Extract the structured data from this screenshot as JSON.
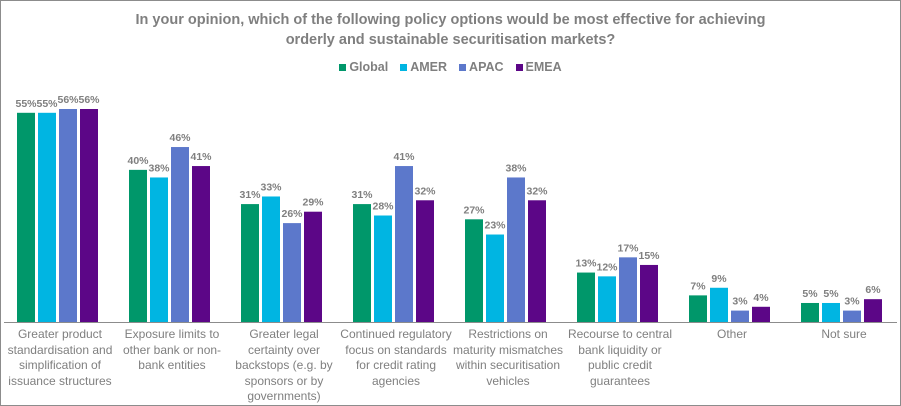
{
  "chart_data": {
    "type": "bar",
    "title": "In your opinion, which of the following policy options would be most effective for achieving orderly and sustainable securitisation markets?",
    "title_lines": [
      "In your opinion, which of the following policy options would be most effective for achieving",
      "orderly and sustainable securitisation markets?"
    ],
    "xlabel": "",
    "ylabel": "",
    "ylim": [
      0,
      60
    ],
    "grid": false,
    "legend_position": "top-center",
    "categories": [
      "Greater product standardisation and simplification of issuance structures",
      "Exposure limits to other bank or non-bank entities",
      "Greater legal certainty over backstops (e.g. by sponsors or by governments)",
      "Continued regulatory focus on standards for credit rating agencies",
      "Restrictions on maturity mismatches within securitisation vehicles",
      "Recourse to central bank liquidity or public credit guarantees",
      "Other",
      "Not sure"
    ],
    "series": [
      {
        "name": "Global",
        "color": "#00976a",
        "values": [
          55,
          40,
          31,
          31,
          27,
          13,
          7,
          5
        ]
      },
      {
        "name": "AMER",
        "color": "#00b5e2",
        "values": [
          55,
          38,
          33,
          28,
          23,
          12,
          9,
          5
        ]
      },
      {
        "name": "APAC",
        "color": "#5c78cb",
        "values": [
          56,
          46,
          26,
          41,
          38,
          17,
          3,
          3
        ]
      },
      {
        "name": "EMEA",
        "color": "#5c0687",
        "values": [
          56,
          41,
          29,
          32,
          32,
          15,
          4,
          6
        ]
      }
    ],
    "value_suffix": "%"
  }
}
